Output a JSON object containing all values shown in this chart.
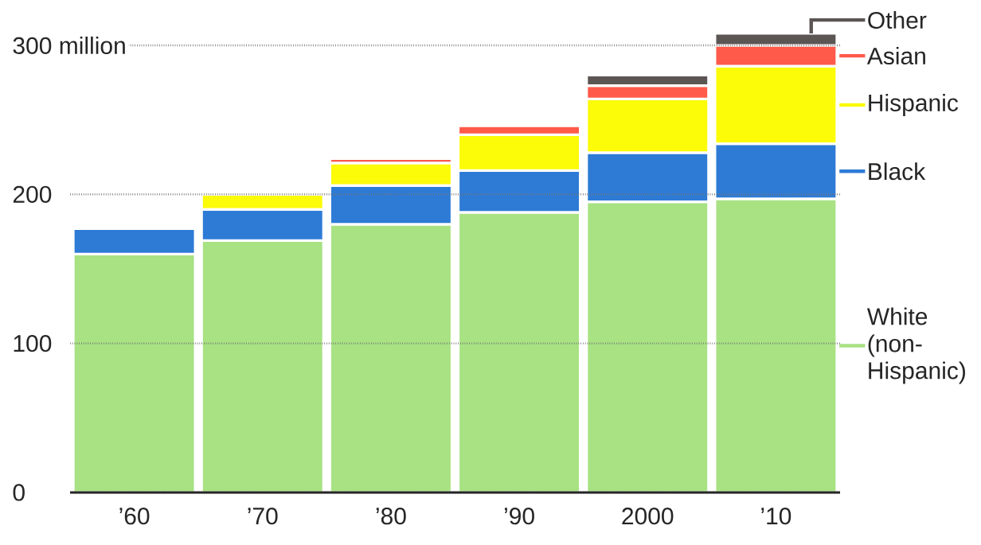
{
  "chart_data": {
    "type": "bar",
    "stacked": true,
    "categories": [
      "’60",
      "’70",
      "’80",
      "’90",
      "2000",
      "’10"
    ],
    "series": [
      {
        "name": "White (non-Hispanic)",
        "color": "#a8e283",
        "values": [
          160,
          169,
          180,
          188,
          195,
          197
        ]
      },
      {
        "name": "Black",
        "color": "#2e7bd6",
        "values": [
          17,
          21,
          26,
          28,
          33,
          37
        ]
      },
      {
        "name": "Hispanic",
        "color": "#fcfb08",
        "values": [
          null,
          10,
          15,
          24,
          36,
          52
        ]
      },
      {
        "name": "Asian",
        "color": "#ff5a4a",
        "values": [
          null,
          null,
          3,
          6,
          9,
          14
        ]
      },
      {
        "name": "Other",
        "color": "#5b5553",
        "values": [
          null,
          null,
          null,
          null,
          7,
          8
        ]
      }
    ],
    "ylim": [
      0,
      308
    ],
    "yticks": [
      0,
      100,
      200,
      {
        "value": 300,
        "label": "300 million"
      }
    ],
    "grid": "y",
    "legend": "right"
  }
}
